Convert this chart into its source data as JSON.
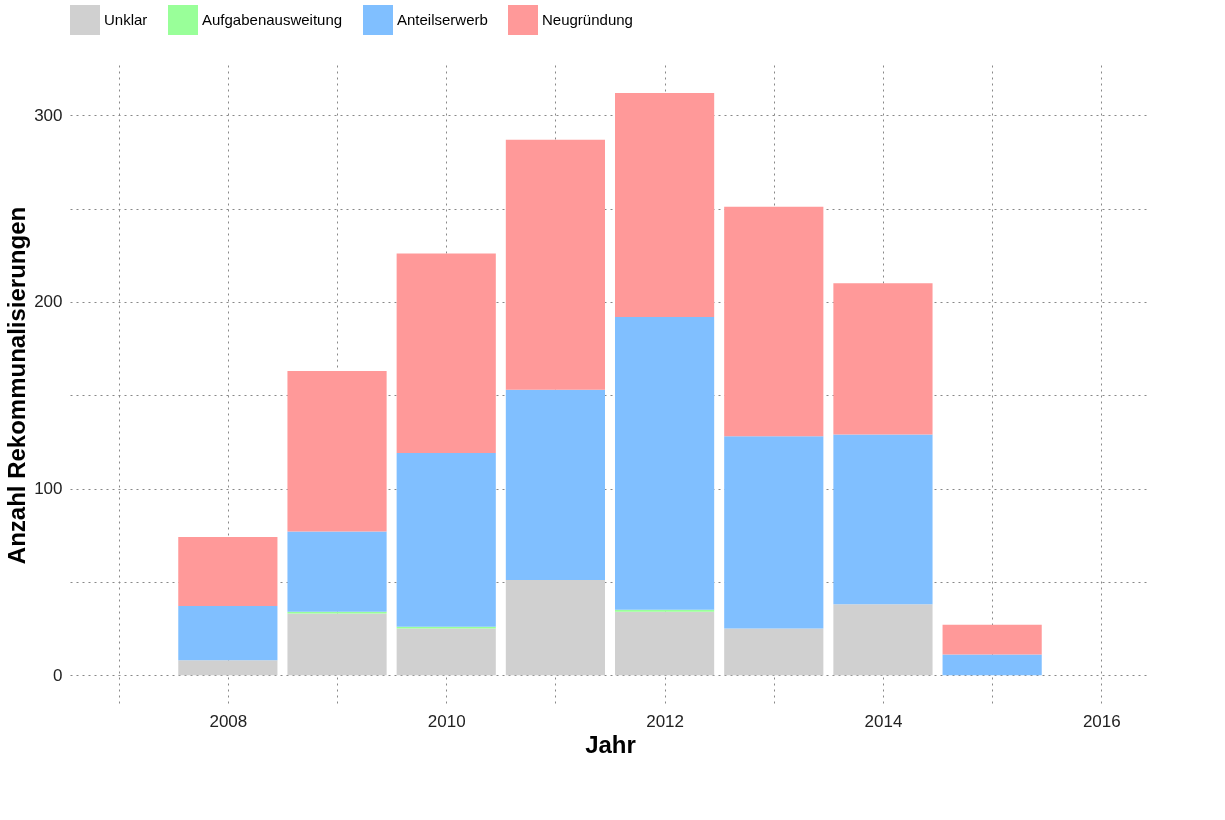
{
  "chart_data": {
    "type": "bar",
    "stacked": true,
    "xlabel": "Jahr",
    "ylabel": "Anzahl Rekommunalisierungen",
    "x": [
      2008,
      2009,
      2010,
      2011,
      2012,
      2013,
      2014,
      2015
    ],
    "series": [
      {
        "name": "Unklar",
        "color": "#d0d0d0",
        "values": [
          8,
          33,
          25,
          51,
          34,
          25,
          38,
          0
        ]
      },
      {
        "name": "Aufgabenausweitung",
        "color": "#99ff99",
        "values": [
          0,
          1,
          1,
          0,
          1,
          0,
          0,
          0
        ]
      },
      {
        "name": "Anteilserwerb",
        "color": "#80bfff",
        "values": [
          29,
          43,
          93,
          102,
          157,
          103,
          91,
          11
        ]
      },
      {
        "name": "Neugründung",
        "color": "#ff9999",
        "values": [
          37,
          86,
          107,
          134,
          120,
          123,
          81,
          16
        ]
      }
    ],
    "xlim": [
      2006.6,
      2016.4
    ],
    "xticks": [
      {
        "value": 2007,
        "label": null
      },
      2008,
      {
        "value": 2009,
        "label": null
      },
      2010,
      {
        "value": 2011,
        "label": null
      },
      2012,
      {
        "value": 2013,
        "label": null
      },
      2014,
      {
        "value": 2015,
        "label": null
      },
      2016
    ],
    "ylim": [
      -16,
      327
    ],
    "yticks": [
      0,
      {
        "value": 50,
        "label": null
      },
      100,
      {
        "value": 150,
        "label": null
      },
      200,
      {
        "value": 250,
        "label": null
      },
      300
    ],
    "grid": true,
    "legend": "top"
  }
}
